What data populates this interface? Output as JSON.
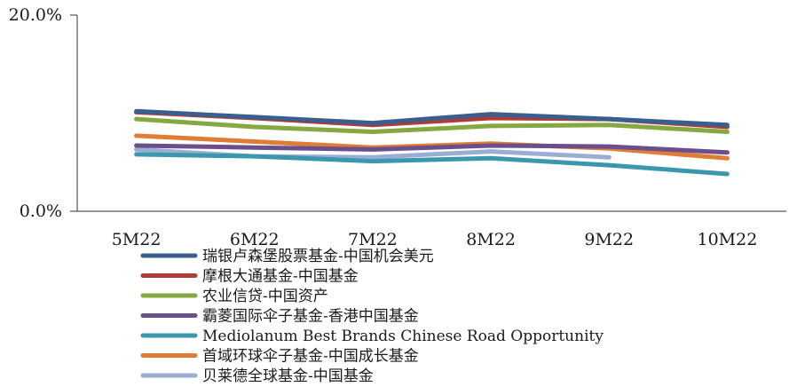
{
  "chart_data": {
    "type": "line",
    "categories": [
      "5M22",
      "6M22",
      "7M22",
      "8M22",
      "9M22",
      "10M22"
    ],
    "ylim": [
      0,
      20
    ],
    "y_ticks": [
      "0.0%",
      "20.0%"
    ],
    "y_tick_values": [
      0,
      20
    ],
    "grid": false,
    "legend_position": "bottom-left",
    "series": [
      {
        "name": "瑞银卢森堡股票基金-中国机会美元",
        "color": "#3a5f8f",
        "values": [
          10.2,
          9.6,
          9.0,
          9.9,
          9.4,
          8.8
        ]
      },
      {
        "name": "摩根大通基金-中国基金",
        "color": "#b03a36",
        "values": [
          10.1,
          9.5,
          8.8,
          9.5,
          9.4,
          8.6
        ]
      },
      {
        "name": "农业信贷-中国资产",
        "color": "#86a843",
        "values": [
          9.4,
          8.6,
          8.1,
          8.7,
          8.8,
          8.1
        ]
      },
      {
        "name": "霸菱国际伞子基金-香港中国基金",
        "color": "#6a4f8c",
        "values": [
          6.7,
          6.5,
          6.3,
          6.7,
          6.6,
          6.0
        ]
      },
      {
        "name": "Mediolanum Best Brands Chinese Road Opportunity",
        "color": "#3a97ad",
        "values": [
          5.8,
          5.6,
          5.1,
          5.4,
          4.7,
          3.8
        ]
      },
      {
        "name": "首域环球伞子基金-中国成长基金",
        "color": "#e07d35",
        "values": [
          7.7,
          7.1,
          6.5,
          6.9,
          6.4,
          5.4
        ]
      },
      {
        "name": "贝莱德全球基金-中国基金",
        "color": "#9aaed3",
        "values": [
          6.3,
          5.6,
          5.5,
          6.1,
          5.5,
          null
        ]
      }
    ]
  }
}
